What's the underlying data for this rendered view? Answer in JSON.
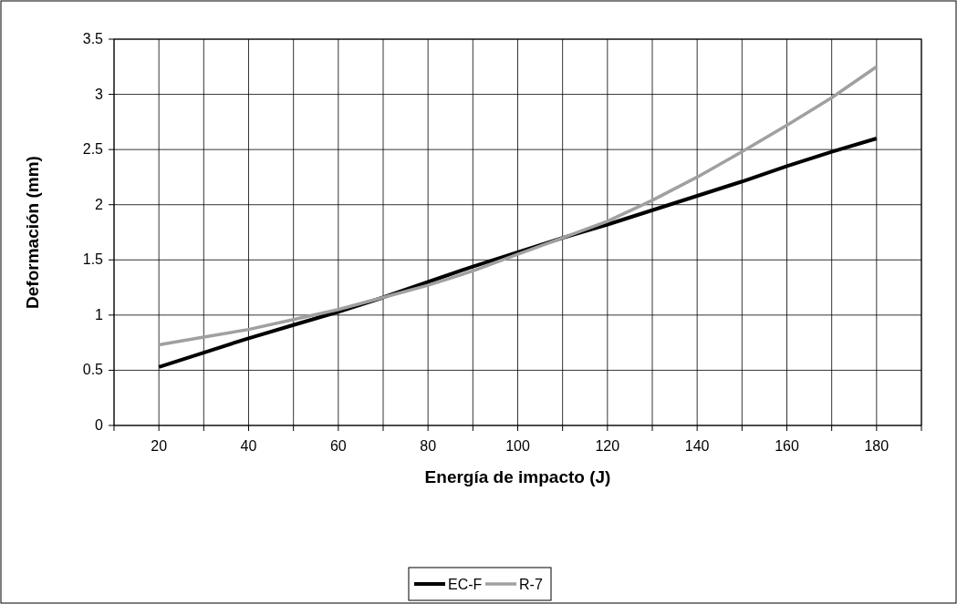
{
  "chart_data": {
    "type": "line",
    "xlabel": "Energía de impacto (J)",
    "ylabel": "Deformación (mm)",
    "x": [
      20,
      30,
      40,
      50,
      60,
      70,
      80,
      90,
      100,
      110,
      120,
      130,
      140,
      150,
      160,
      170,
      180
    ],
    "series": [
      {
        "name": "EC-F",
        "color": "#000000",
        "values": [
          0.53,
          0.66,
          0.79,
          0.91,
          1.03,
          1.16,
          1.3,
          1.44,
          1.57,
          1.7,
          1.82,
          1.95,
          2.08,
          2.21,
          2.35,
          2.48,
          2.6
        ]
      },
      {
        "name": "R-7",
        "color": "#a0a0a0",
        "values": [
          0.73,
          0.8,
          0.87,
          0.96,
          1.05,
          1.16,
          1.27,
          1.4,
          1.55,
          1.7,
          1.85,
          2.04,
          2.25,
          2.48,
          2.72,
          2.97,
          3.25
        ]
      }
    ],
    "xlim": [
      10,
      190
    ],
    "xticks": [
      {
        "value": 10,
        "label": null
      },
      20,
      {
        "value": 30,
        "label": null
      },
      40,
      {
        "value": 50,
        "label": null
      },
      60,
      {
        "value": 70,
        "label": null
      },
      80,
      {
        "value": 90,
        "label": null
      },
      100,
      {
        "value": 110,
        "label": null
      },
      120,
      {
        "value": 130,
        "label": null
      },
      140,
      {
        "value": 150,
        "label": null
      },
      160,
      {
        "value": 170,
        "label": null
      },
      180,
      {
        "value": 190,
        "label": null
      }
    ],
    "ylim": [
      0,
      3.5
    ],
    "yticks": [
      0,
      0.5,
      1,
      1.5,
      2,
      2.5,
      3,
      3.5
    ],
    "grid": true,
    "legend": "bottom",
    "marker": "none",
    "line_style": "solid"
  }
}
